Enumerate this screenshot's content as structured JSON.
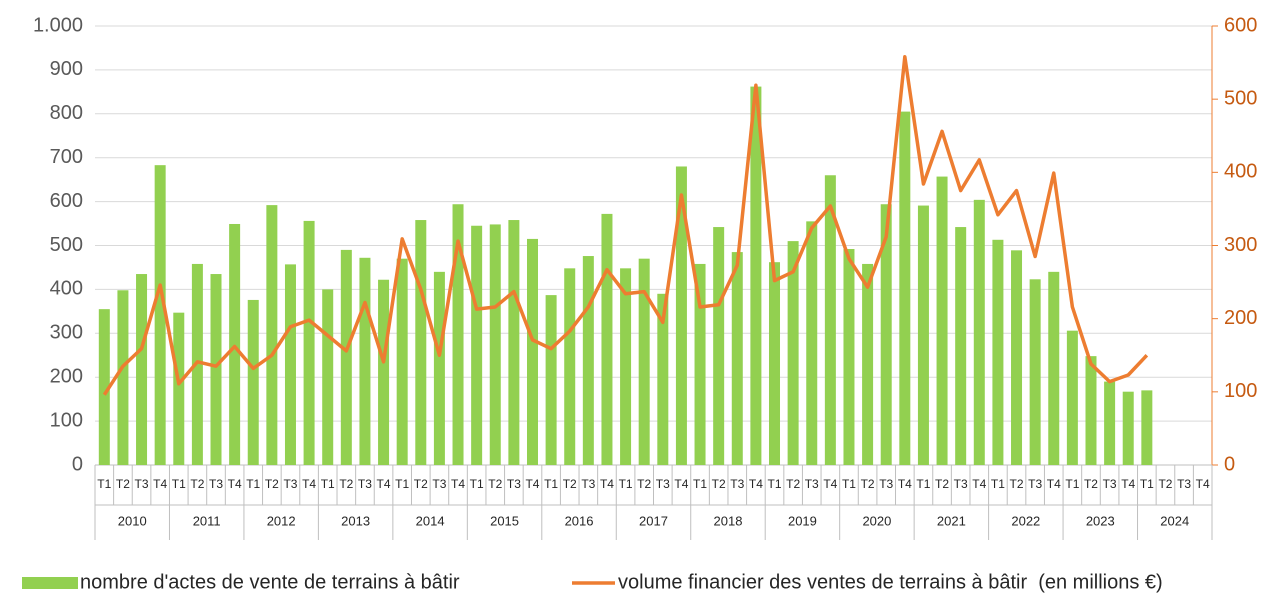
{
  "chart_data": {
    "type": "bar",
    "categories": [
      "T1",
      "T2",
      "T3",
      "T4",
      "T1",
      "T2",
      "T3",
      "T4",
      "T1",
      "T2",
      "T3",
      "T4",
      "T1",
      "T2",
      "T3",
      "T4",
      "T1",
      "T2",
      "T3",
      "T4",
      "T1",
      "T2",
      "T3",
      "T4",
      "T1",
      "T2",
      "T3",
      "T4",
      "T1",
      "T2",
      "T3",
      "T4",
      "T1",
      "T2",
      "T3",
      "T4",
      "T1",
      "T2",
      "T3",
      "T4",
      "T1",
      "T2",
      "T3",
      "T4",
      "T1",
      "T2",
      "T3",
      "T4",
      "T1",
      "T2",
      "T3",
      "T4",
      "T1",
      "T2",
      "T3",
      "T4",
      "T1",
      "T2",
      "T3",
      "T4"
    ],
    "years": [
      "2010",
      "2011",
      "2012",
      "2013",
      "2014",
      "2015",
      "2016",
      "2017",
      "2018",
      "2019",
      "2020",
      "2021",
      "2022",
      "2023",
      "2024"
    ],
    "series": [
      {
        "name": "nombre d'actes de vente de terrains à bâtir",
        "color": "#92d050",
        "type": "bar",
        "values": [
          355,
          398,
          435,
          683,
          347,
          458,
          435,
          549,
          376,
          592,
          457,
          556,
          400,
          490,
          472,
          422,
          470,
          558,
          440,
          594,
          545,
          548,
          558,
          515,
          387,
          448,
          476,
          572,
          448,
          470,
          390,
          680,
          458,
          542,
          485,
          862,
          462,
          510,
          555,
          660,
          492,
          458,
          594,
          805,
          591,
          657,
          542,
          604,
          513,
          489,
          423,
          440,
          306,
          248,
          190,
          167,
          170,
          null,
          null,
          null
        ]
      },
      {
        "name": "volume financier des ventes de terrains à bâtir  (en millions €)",
        "color": "#ed7d31",
        "type": "line",
        "axis": "y2",
        "values": [
          96,
          135,
          159,
          246,
          111,
          141,
          135,
          162,
          132,
          150,
          189,
          198,
          177,
          156,
          222,
          141,
          309,
          240,
          150,
          306,
          213,
          216,
          237,
          171,
          159,
          183,
          216,
          267,
          234,
          237,
          195,
          369,
          216,
          219,
          273,
          519,
          252,
          264,
          324,
          354,
          282,
          243,
          312,
          558,
          384,
          456,
          375,
          417,
          342,
          375,
          285,
          399,
          216,
          138,
          114,
          123,
          150,
          null,
          null,
          null
        ]
      }
    ],
    "ylim": [
      0,
      1000
    ],
    "yticks": [
      0,
      100,
      200,
      300,
      400,
      500,
      600,
      700,
      800,
      900,
      {
        "value": 1000,
        "label": "1.000"
      }
    ],
    "y2lim": [
      0,
      600
    ],
    "y2ticks": [
      0,
      100,
      200,
      300,
      400,
      500,
      600
    ],
    "grid": true
  }
}
